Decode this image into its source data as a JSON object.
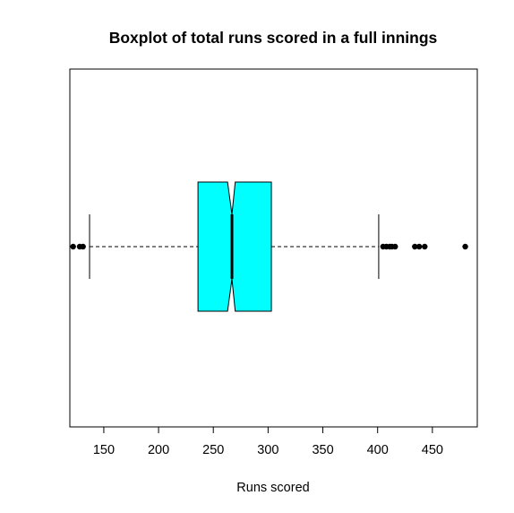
{
  "chart_data": {
    "type": "boxplot",
    "orientation": "horizontal",
    "notched": true,
    "title": "Boxplot of total runs scored in a full innings",
    "xlabel": "Runs scored",
    "xlim": [
      119,
      491
    ],
    "x_ticks": [
      150,
      200,
      250,
      300,
      350,
      400,
      450
    ],
    "box": {
      "whisker_low": 137,
      "q1": 236,
      "median": 267,
      "q3": 303,
      "whisker_high": 401,
      "notch_low": 263,
      "notch_high": 270
    },
    "outliers": [
      122,
      128,
      131,
      405,
      408,
      411,
      413,
      416,
      434,
      438,
      443,
      480
    ],
    "colors": {
      "box_fill": "#00ffff",
      "box_stroke": "#000000",
      "median": "#000000",
      "points": "#000000"
    }
  }
}
